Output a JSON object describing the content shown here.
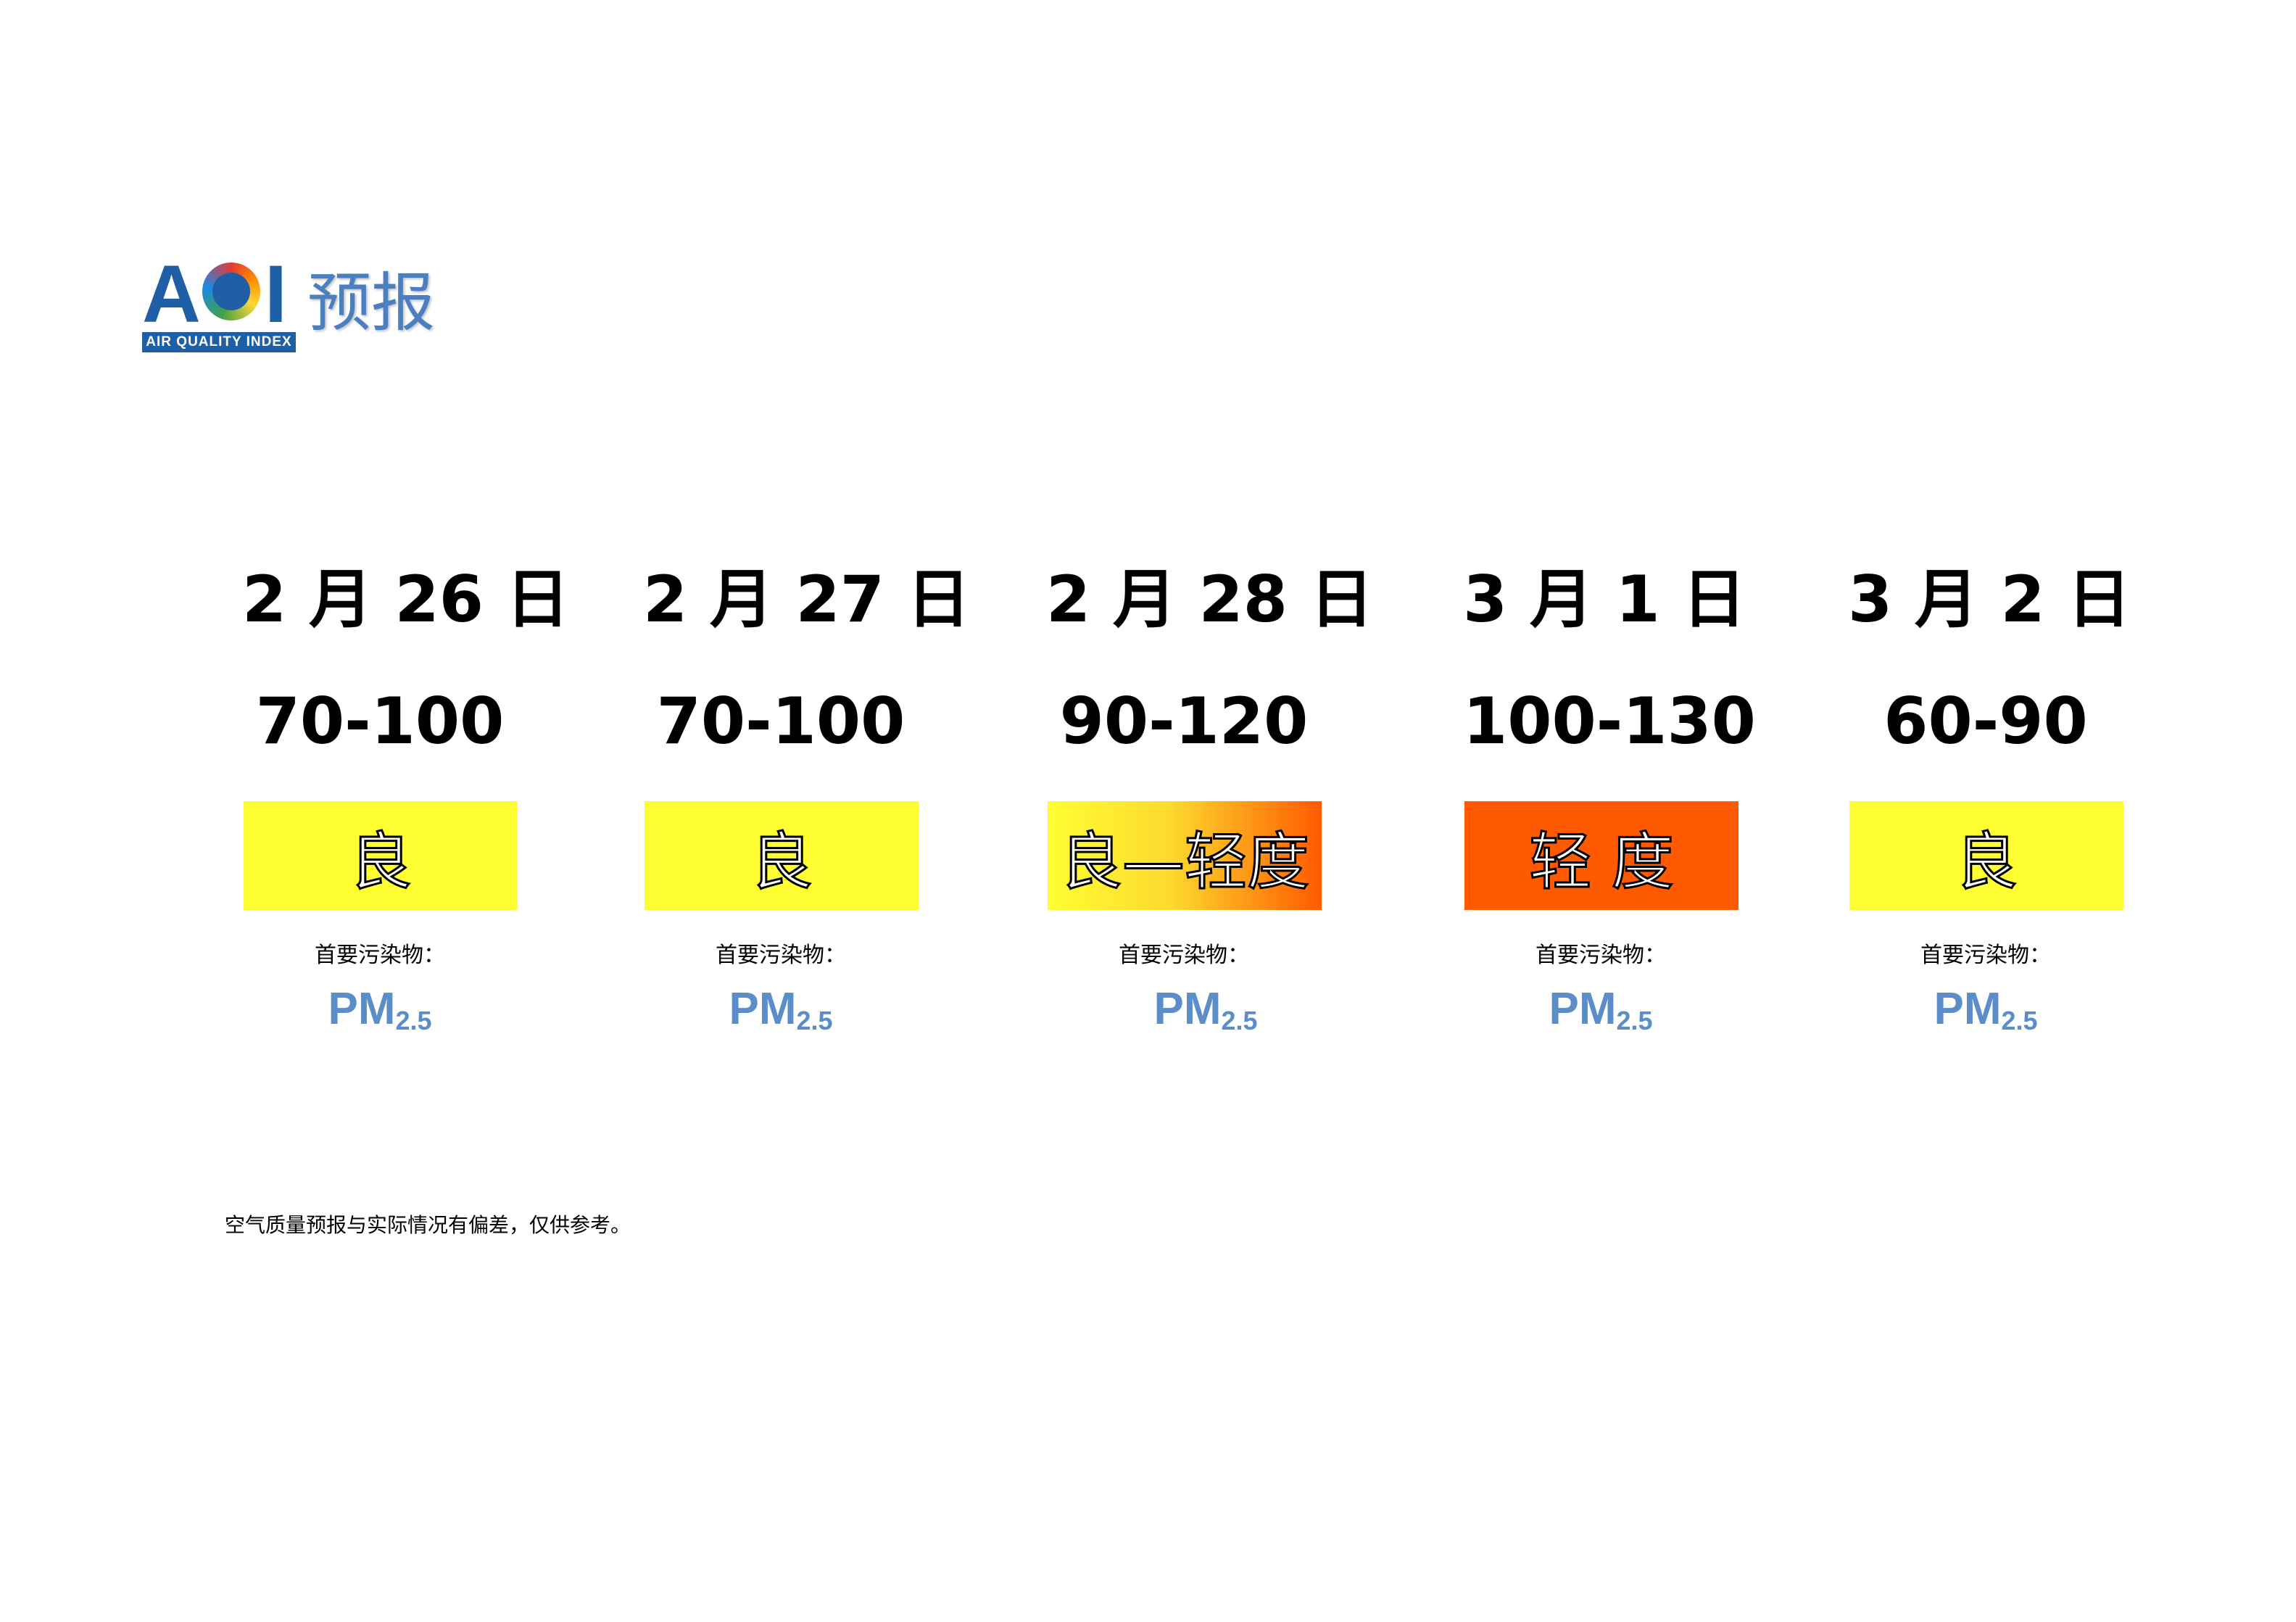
{
  "logo": {
    "aqi_text": "AQI",
    "aqi_parts": [
      "A",
      "Q",
      "I"
    ],
    "band_text": "AIR QUALITY INDEX",
    "title": "预报",
    "colors": {
      "brand_blue": "#1f5fa6",
      "title_blue": "#4a7fc0"
    }
  },
  "forecast": [
    {
      "date": "2 月 26 日",
      "range": "70-100",
      "level": "良",
      "level_bg": "#fefe33",
      "pollutant_label": "首要污染物：",
      "pollutant": "PM",
      "pollutant_sub": "2.5"
    },
    {
      "date": "2 月 27 日",
      "range": "70-100",
      "level": "良",
      "level_bg": "#fefe33",
      "pollutant_label": "首要污染物：",
      "pollutant": "PM",
      "pollutant_sub": "2.5"
    },
    {
      "date": "2 月 28 日",
      "range": "90-120",
      "level": "良—轻度",
      "level_bg": "linear-gradient(90deg, #fefe33 0%, #fdd92e 45%, #ff5a00 100%)",
      "pollutant_label": "首要污染物：",
      "pollutant": "PM",
      "pollutant_sub": "2.5"
    },
    {
      "date": "3 月 1 日",
      "range": "100-130",
      "level": "轻 度",
      "level_bg": "#ff5a00",
      "pollutant_label": "首要污染物：",
      "pollutant": "PM",
      "pollutant_sub": "2.5"
    },
    {
      "date": "3 月 2 日",
      "range": "60-90",
      "level": "良",
      "level_bg": "#fefe33",
      "pollutant_label": "首要污染物：",
      "pollutant": "PM",
      "pollutant_sub": "2.5"
    }
  ],
  "note": "空气质量预报与实际情况有偏差，仅供参考。",
  "colors": {
    "pm_text": "#5b8ec9",
    "good": "#fefe33",
    "light_pollution": "#ff5a00"
  }
}
